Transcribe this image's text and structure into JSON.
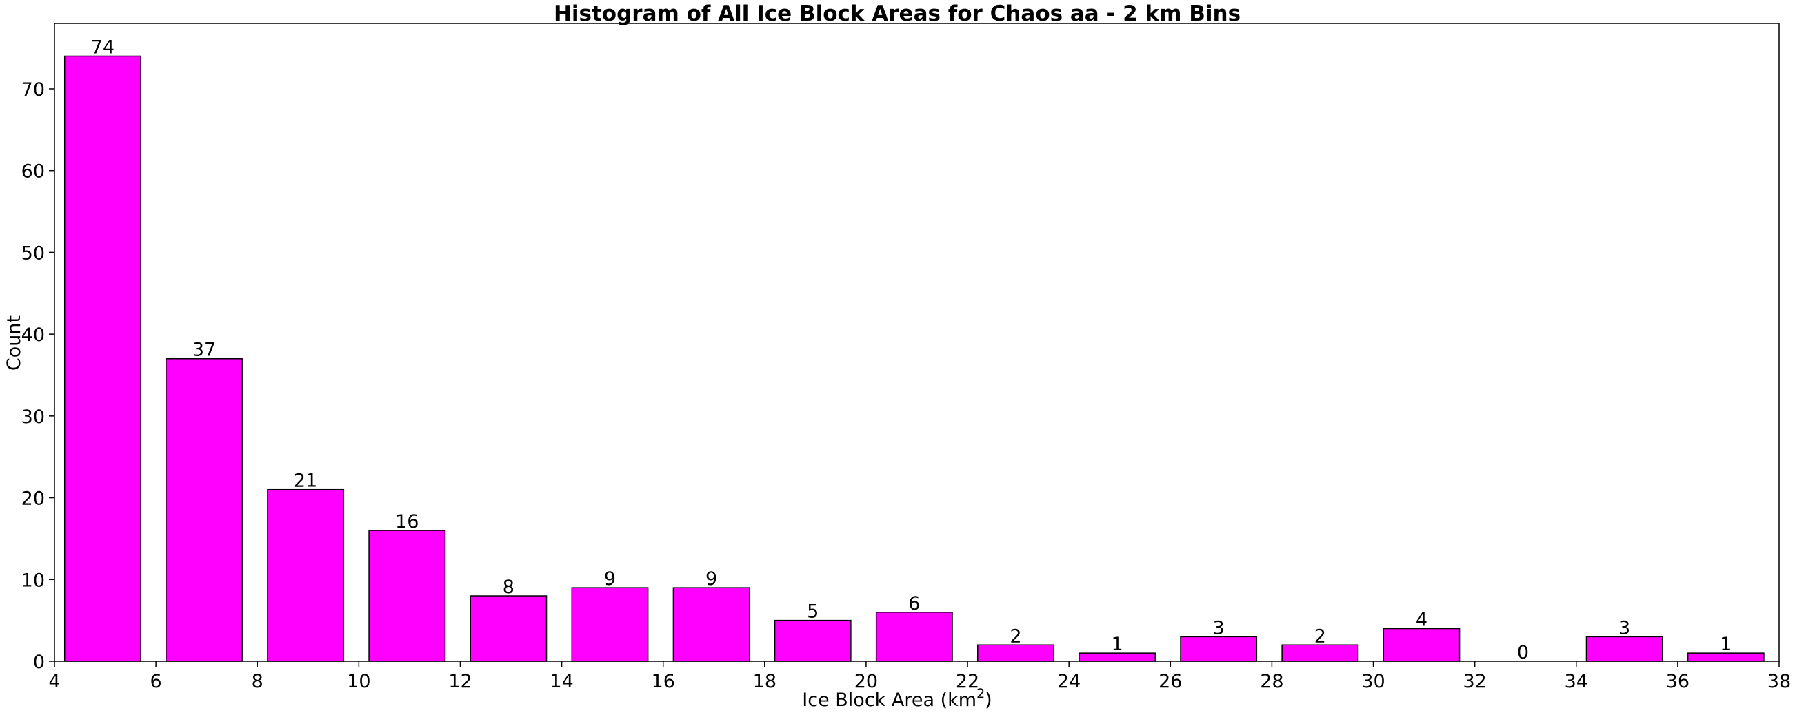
{
  "chart_data": {
    "type": "bar",
    "title": "Histogram of All Ice Block Areas for Chaos aa - 2 km Bins",
    "xlabel": "Ice Block Area (km",
    "xlabel_sup": "2",
    "xlabel_suffix": ")",
    "ylabel": "Count",
    "xlim": [
      4,
      38
    ],
    "ylim": [
      0,
      78
    ],
    "bin_width": 2,
    "bar_width": 1.5,
    "bins": [
      {
        "start": 4.2,
        "value": 74
      },
      {
        "start": 6.2,
        "value": 37
      },
      {
        "start": 8.2,
        "value": 21
      },
      {
        "start": 10.2,
        "value": 16
      },
      {
        "start": 12.2,
        "value": 8
      },
      {
        "start": 14.2,
        "value": 9
      },
      {
        "start": 16.2,
        "value": 9
      },
      {
        "start": 18.2,
        "value": 5
      },
      {
        "start": 20.2,
        "value": 6
      },
      {
        "start": 22.2,
        "value": 2
      },
      {
        "start": 24.2,
        "value": 1
      },
      {
        "start": 26.2,
        "value": 3
      },
      {
        "start": 28.2,
        "value": 2
      },
      {
        "start": 30.2,
        "value": 4
      },
      {
        "start": 32.2,
        "value": 0
      },
      {
        "start": 34.2,
        "value": 3
      },
      {
        "start": 36.2,
        "value": 1
      }
    ],
    "xticks": [
      4,
      6,
      8,
      10,
      12,
      14,
      16,
      18,
      20,
      22,
      24,
      26,
      28,
      30,
      32,
      34,
      36,
      38
    ],
    "yticks": [
      0,
      10,
      20,
      30,
      40,
      50,
      60,
      70
    ],
    "grid": false,
    "colors": {
      "bar": "#ff00ff",
      "edge": "#000000"
    }
  }
}
